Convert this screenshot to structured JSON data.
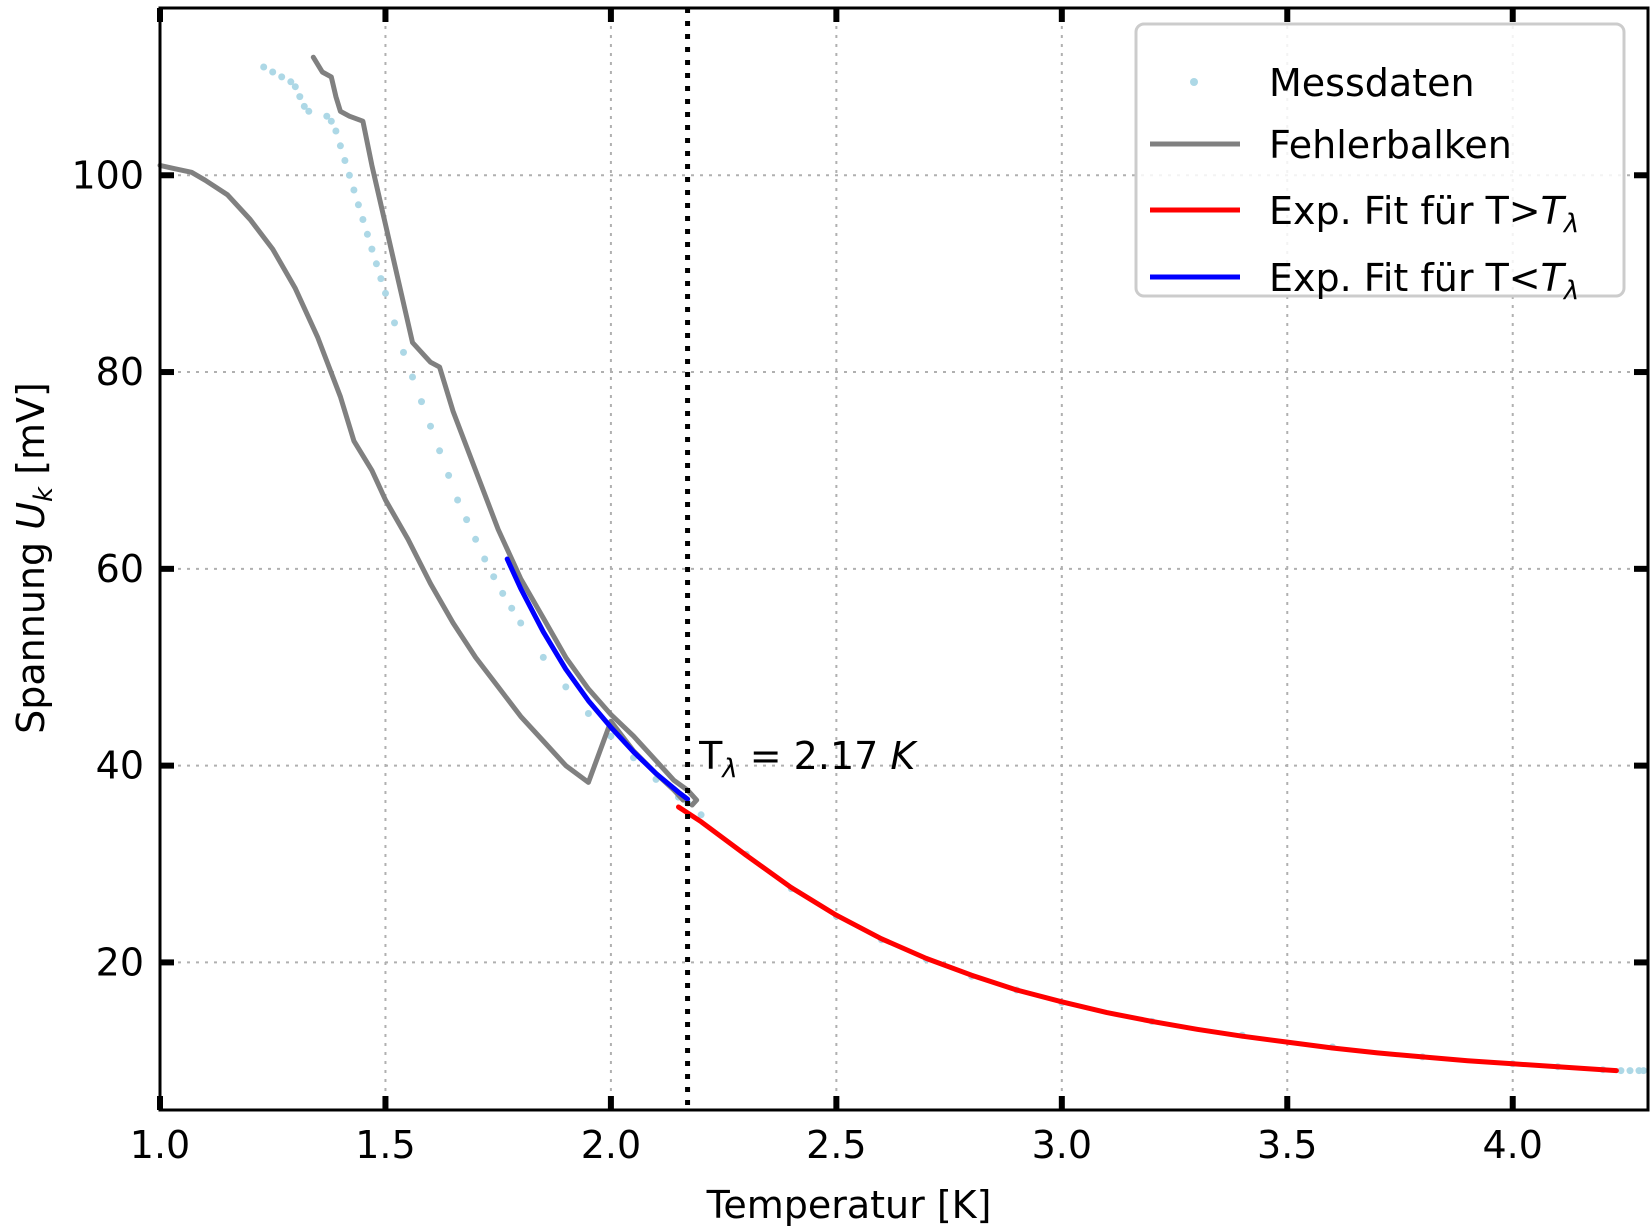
{
  "chart_data": {
    "type": "line",
    "xlabel": "Temperatur [K]",
    "ylabel_prefix": "Spannung ",
    "ylabel_var": "U",
    "ylabel_sub": "k",
    "ylabel_suffix": " [mV]",
    "xlim": [
      1.0,
      4.3
    ],
    "ylim": [
      5,
      117
    ],
    "x_ticks": [
      1.0,
      1.5,
      2.0,
      2.5,
      3.0,
      3.5,
      4.0
    ],
    "x_tick_labels": [
      "1.0",
      "1.5",
      "2.0",
      "2.5",
      "3.0",
      "3.5",
      "4.0"
    ],
    "y_ticks": [
      20,
      40,
      60,
      80,
      100
    ],
    "y_tick_labels": [
      "20",
      "40",
      "60",
      "80",
      "100"
    ],
    "grid": true,
    "legend_position": "top-right",
    "legend": [
      {
        "key": "messdaten",
        "label": "Messdaten",
        "marker": "dot"
      },
      {
        "key": "fehler",
        "label": "Fehlerbalken",
        "marker": "line"
      },
      {
        "key": "fit_above",
        "label_prefix": "Exp. Fit für T>",
        "label_var": "T",
        "label_sub": "λ",
        "marker": "line"
      },
      {
        "key": "fit_below",
        "label_prefix": "Exp. Fit für T<",
        "label_var": "T",
        "label_sub": "λ",
        "marker": "line"
      }
    ],
    "lambda_line": {
      "x": 2.17
    },
    "annotation": {
      "prefix": "T",
      "sub": "λ",
      "middle": " = 2.17 ",
      "unit": "K",
      "x": 2.2,
      "y": 41.5
    },
    "colors": {
      "messdaten": "#add8e6",
      "fehler": "#808080",
      "fit_above": "#ff0000",
      "fit_below": "#0000ff",
      "lambda_line": "#000000",
      "grid": "#b0b0b0"
    },
    "series": [
      {
        "key": "messdaten",
        "name": "Messdaten",
        "style": "scatter",
        "x": [
          1.23,
          1.25,
          1.27,
          1.29,
          1.3,
          1.31,
          1.32,
          1.33,
          1.37,
          1.38,
          1.39,
          1.4,
          1.41,
          1.42,
          1.43,
          1.44,
          1.45,
          1.46,
          1.47,
          1.48,
          1.49,
          1.5,
          1.52,
          1.54,
          1.56,
          1.58,
          1.6,
          1.62,
          1.64,
          1.66,
          1.68,
          1.7,
          1.72,
          1.74,
          1.76,
          1.78,
          1.8,
          1.85,
          1.9,
          1.95,
          2.0,
          2.05,
          2.1,
          2.15,
          2.17,
          2.2,
          2.3,
          2.4,
          2.5,
          2.6,
          2.7,
          2.8,
          2.9,
          3.0,
          3.2,
          3.4,
          3.6,
          3.8,
          4.0,
          4.1,
          4.2,
          4.24,
          4.26,
          4.28,
          4.29
        ],
        "y": [
          111,
          110.5,
          110,
          109.5,
          109,
          108,
          107,
          106.5,
          106,
          105.5,
          104.5,
          103,
          101.5,
          100,
          98.5,
          97,
          95.5,
          94,
          92.5,
          91,
          89.5,
          88,
          85,
          82,
          79.5,
          77,
          74.5,
          72,
          69.5,
          67,
          65,
          63,
          61,
          59.2,
          57.5,
          56,
          54.5,
          51,
          48,
          45.3,
          43,
          40.8,
          38.6,
          36.8,
          36.2,
          35.0,
          31.0,
          27.5,
          24.7,
          22.3,
          20.3,
          18.6,
          17.2,
          15.9,
          14.0,
          12.6,
          11.4,
          10.4,
          9.7,
          9.4,
          9.1,
          9.0,
          9.0,
          9.0,
          9.0
        ]
      },
      {
        "key": "fehler_upper",
        "name": "Fehlerbalken",
        "style": "line",
        "x": [
          1.34,
          1.36,
          1.38,
          1.39,
          1.4,
          1.42,
          1.45,
          1.47,
          1.5,
          1.53,
          1.56,
          1.59,
          1.6,
          1.62,
          1.65,
          1.7,
          1.75,
          1.8,
          1.85,
          1.9,
          1.95,
          2.0,
          2.05,
          2.1,
          2.14,
          2.17,
          2.19,
          2.18
        ],
        "y": [
          112,
          110.5,
          110,
          108,
          106.5,
          106,
          105.5,
          101,
          95,
          89,
          83,
          81.5,
          81,
          80.5,
          76,
          70,
          64,
          59,
          55,
          51,
          47.8,
          45.2,
          43,
          40.5,
          38.5,
          37.5,
          36.5,
          36.0
        ]
      },
      {
        "key": "fehler_lower",
        "name": "Fehlerbalken",
        "style": "line",
        "x": [
          1.0,
          1.03,
          1.07,
          1.1,
          1.15,
          1.2,
          1.25,
          1.3,
          1.35,
          1.4,
          1.43,
          1.45,
          1.47,
          1.5,
          1.55,
          1.6,
          1.65,
          1.7,
          1.75,
          1.8,
          1.85,
          1.9,
          1.95,
          2.0,
          2.05,
          2.1,
          2.14,
          2.16
        ],
        "y": [
          101,
          100.7,
          100.3,
          99.5,
          98,
          95.5,
          92.5,
          88.5,
          83.5,
          77.5,
          73,
          71.5,
          70,
          67,
          63,
          58.5,
          54.5,
          51,
          48,
          45,
          42.5,
          40,
          38.3,
          44.5,
          41.5,
          39.2,
          37.5,
          36.5
        ]
      },
      {
        "key": "fit_below",
        "name": "Exp. Fit für T<Tλ",
        "style": "line",
        "x": [
          1.77,
          1.8,
          1.85,
          1.9,
          1.95,
          2.0,
          2.05,
          2.1,
          2.15,
          2.17
        ],
        "y": [
          61.0,
          58.0,
          53.6,
          49.8,
          46.6,
          43.9,
          41.4,
          39.2,
          37.3,
          36.6
        ]
      },
      {
        "key": "fit_above",
        "name": "Exp. Fit für T>Tλ",
        "style": "line",
        "x": [
          2.15,
          2.2,
          2.3,
          2.4,
          2.5,
          2.6,
          2.7,
          2.8,
          2.9,
          3.0,
          3.1,
          3.2,
          3.3,
          3.4,
          3.5,
          3.6,
          3.7,
          3.8,
          3.9,
          4.0,
          4.1,
          4.2,
          4.23
        ],
        "y": [
          35.8,
          34.3,
          30.9,
          27.6,
          24.8,
          22.4,
          20.4,
          18.7,
          17.2,
          16.0,
          14.9,
          14.0,
          13.2,
          12.5,
          11.9,
          11.3,
          10.8,
          10.4,
          10.0,
          9.7,
          9.4,
          9.1,
          9.0
        ]
      }
    ]
  }
}
